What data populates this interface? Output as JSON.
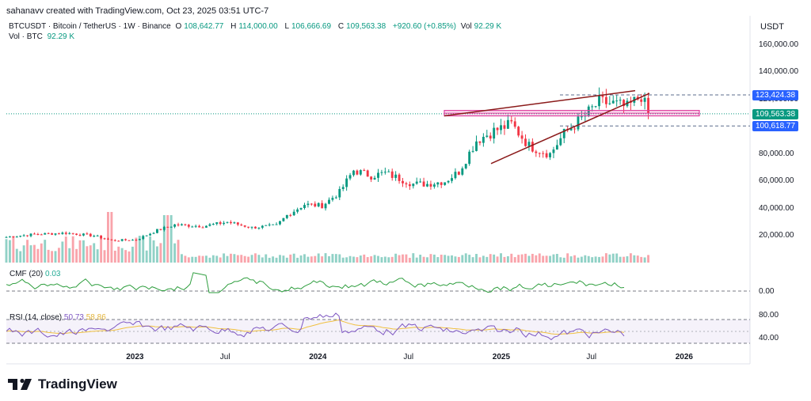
{
  "credit": "sahanavv created with TradingView.com, Oct 23, 2025 03:51 UTC-7",
  "legend": {
    "symbol": "BTCUSDT · Bitcoin / TetherUS · 1W · Binance",
    "open_label": "O",
    "open": "108,642.77",
    "high_label": "H",
    "high": "114,000.00",
    "low_label": "L",
    "low": "106,666.69",
    "close_label": "C",
    "close": "109,563.38",
    "change": "+920.60 (+0.85%)",
    "vol_label": "Vol",
    "vol": "92.29 K",
    "vol_btc_label": "Vol · BTC",
    "vol_btc": "92.29 K"
  },
  "currency": "USDT",
  "indicators": {
    "cmf": {
      "label": "CMF (20)",
      "value": "0.03",
      "zero_label": "0.00"
    },
    "rsi": {
      "label": "RSI (14, close)",
      "value": "50.73",
      "ma_value": "58.86",
      "upper_label": "80.00",
      "lower_label": "40.00"
    }
  },
  "price_tags": {
    "high_level": "123,424.38",
    "last": "109,563.38",
    "low_level": "100,618.77"
  },
  "colors": {
    "up": "#089981",
    "down": "#f23645",
    "wedge": "#8b1a1a",
    "zone": "#e040a0",
    "cmf": "#2e9e3e",
    "rsi": "#7e57c2",
    "rsi_ma": "#f0c040",
    "tag_blue": "#2962ff",
    "tag_green": "#089981"
  },
  "chart_data": {
    "type": "candlestick",
    "y_axis_ticks": [
      "160,000.00",
      "140,000.00",
      "120,000.00",
      "100,000.00",
      "80,000.00",
      "60,000.00",
      "40,000.00",
      "20,000.00"
    ],
    "y_axis_values": [
      160000,
      140000,
      120000,
      100000,
      80000,
      60000,
      40000,
      20000
    ],
    "x_axis_ticks": [
      "2023",
      "Jul",
      "2024",
      "Jul",
      "2025",
      "Jul",
      "2026"
    ],
    "x_axis_dates": [
      "2023-01-01",
      "2023-07-01",
      "2024-01-01",
      "2024-07-01",
      "2025-01-01",
      "2025-07-01",
      "2026-01-01"
    ],
    "x_range": [
      "2022-04-18",
      "2026-05-11"
    ],
    "ylim": [
      0,
      175000
    ],
    "close_series": [
      {
        "date": "2022-04-18",
        "close": 19000
      },
      {
        "date": "2022-06-13",
        "close": 21000
      },
      {
        "date": "2022-08-15",
        "close": 22000
      },
      {
        "date": "2022-10-10",
        "close": 20000
      },
      {
        "date": "2022-11-14",
        "close": 16500
      },
      {
        "date": "2023-01-02",
        "close": 17000
      },
      {
        "date": "2023-02-13",
        "close": 24000
      },
      {
        "date": "2023-03-20",
        "close": 28000
      },
      {
        "date": "2023-05-15",
        "close": 27000
      },
      {
        "date": "2023-07-03",
        "close": 30000
      },
      {
        "date": "2023-08-21",
        "close": 26000
      },
      {
        "date": "2023-10-09",
        "close": 27500
      },
      {
        "date": "2023-10-30",
        "close": 35000
      },
      {
        "date": "2023-12-04",
        "close": 43000
      },
      {
        "date": "2024-01-08",
        "close": 42000
      },
      {
        "date": "2024-02-12",
        "close": 52000
      },
      {
        "date": "2024-03-11",
        "close": 68000
      },
      {
        "date": "2024-04-15",
        "close": 64000
      },
      {
        "date": "2024-05-13",
        "close": 66000
      },
      {
        "date": "2024-06-10",
        "close": 62000
      },
      {
        "date": "2024-07-08",
        "close": 58000
      },
      {
        "date": "2024-08-05",
        "close": 58000
      },
      {
        "date": "2024-09-09",
        "close": 60000
      },
      {
        "date": "2024-10-07",
        "close": 67000
      },
      {
        "date": "2024-11-11",
        "close": 90000
      },
      {
        "date": "2024-12-16",
        "close": 97000
      },
      {
        "date": "2025-01-20",
        "close": 102000
      },
      {
        "date": "2025-02-24",
        "close": 86000
      },
      {
        "date": "2025-04-07",
        "close": 80000
      },
      {
        "date": "2025-05-05",
        "close": 95000
      },
      {
        "date": "2025-06-09",
        "close": 106000
      },
      {
        "date": "2025-07-14",
        "close": 118000
      },
      {
        "date": "2025-08-11",
        "close": 117000
      },
      {
        "date": "2025-09-08",
        "close": 114000
      },
      {
        "date": "2025-10-06",
        "close": 123000
      },
      {
        "date": "2025-10-20",
        "close": 109563
      }
    ],
    "levels": [
      123424.38,
      109563.38,
      100618.77
    ],
    "zone": [
      108000,
      112000
    ]
  }
}
